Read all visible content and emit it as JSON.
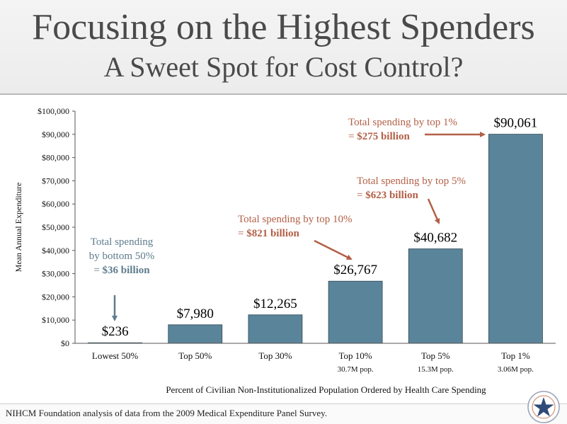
{
  "title": "Focusing on the Highest Spenders",
  "subtitle": "A Sweet Spot for Cost Control?",
  "source": "NIHCM Foundation analysis of data from the 2009 Medical Expenditure Panel Survey.",
  "chart_data": {
    "type": "bar",
    "categories": [
      "Lowest 50%",
      "Top 50%",
      "Top 30%",
      "Top 10%",
      "Top 5%",
      "Top 1%"
    ],
    "category_sublabels": [
      "",
      "",
      "",
      "30.7M pop.",
      "15.3M pop.",
      "3.06M pop."
    ],
    "values": [
      236,
      7980,
      12265,
      26767,
      40682,
      90061
    ],
    "value_labels": [
      "$236",
      "$7,980",
      "$12,265",
      "$26,767",
      "$40,682",
      "$90,061"
    ],
    "ylabel": "Mean Annual Expenditure",
    "xlabel": "Percent of Civilian Non-Institutionalized Population Ordered by Health Care Spending",
    "ylim": [
      0,
      100000
    ],
    "yticks": [
      0,
      10000,
      20000,
      30000,
      40000,
      50000,
      60000,
      70000,
      80000,
      90000,
      100000
    ],
    "ytick_labels": [
      "$0",
      "$10,000",
      "$20,000",
      "$30,000",
      "$40,000",
      "$50,000",
      "$60,000",
      "$70,000",
      "$80,000",
      "$90,000",
      "$100,000"
    ],
    "grid": false,
    "legend": "none",
    "bar_color": "#5a8499",
    "annotations": [
      {
        "target": "Lowest 50%",
        "lines": [
          "Total spending",
          "by bottom 50%"
        ],
        "value_line": [
          "= ",
          "$36 billion"
        ],
        "color": "#5e7c8c"
      },
      {
        "target": "Top 10%",
        "lines": [
          "Total spending by top 10%"
        ],
        "value_line": [
          "= ",
          "$821 billion"
        ],
        "color": "#b36047"
      },
      {
        "target": "Top 5%",
        "lines": [
          "Total spending by top 5%"
        ],
        "value_line": [
          "= ",
          "$623 billion"
        ],
        "color": "#b36047"
      },
      {
        "target": "Top 1%",
        "lines": [
          "Total spending by top 1%"
        ],
        "value_line": [
          "= ",
          "$275 billion"
        ],
        "color": "#b36047"
      }
    ]
  }
}
